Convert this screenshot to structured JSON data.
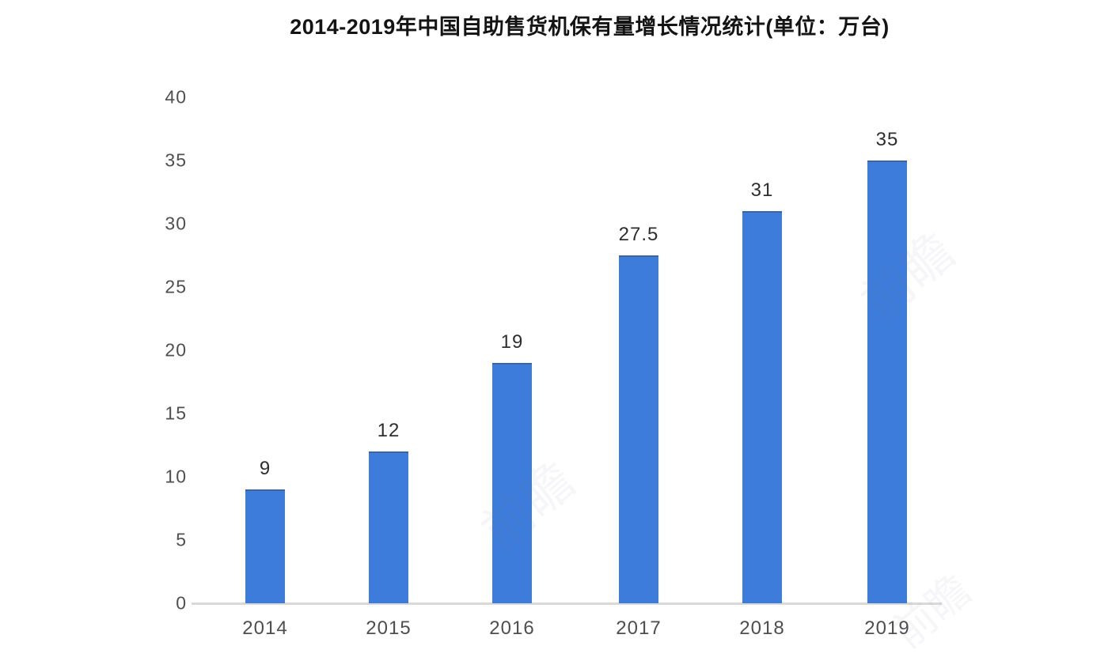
{
  "chart_data": {
    "type": "bar",
    "title": "2014-2019年中国自助售货机保有量增长情况统计(单位：万台)",
    "categories": [
      "2014",
      "2015",
      "2016",
      "2017",
      "2018",
      "2019"
    ],
    "values": [
      9,
      12,
      19,
      27.5,
      31,
      35
    ],
    "value_labels": [
      "9",
      "12",
      "19",
      "27.5",
      "31",
      "35"
    ],
    "unit": "万台",
    "xlabel": "",
    "ylabel": "",
    "ylim": [
      0,
      40
    ],
    "yticks": [
      0,
      5,
      10,
      15,
      20,
      25,
      30,
      35,
      40
    ],
    "grid": false,
    "legend_position": "none",
    "bar_color": "#3d7cdb",
    "axis_line_color": "#d9d9d9",
    "value_label_color": "#2e2e2e",
    "tick_label_color": "#4e4e4e",
    "title_color": "#141414",
    "background_color": "#ffffff"
  },
  "watermark": {
    "text": "前瞻"
  }
}
